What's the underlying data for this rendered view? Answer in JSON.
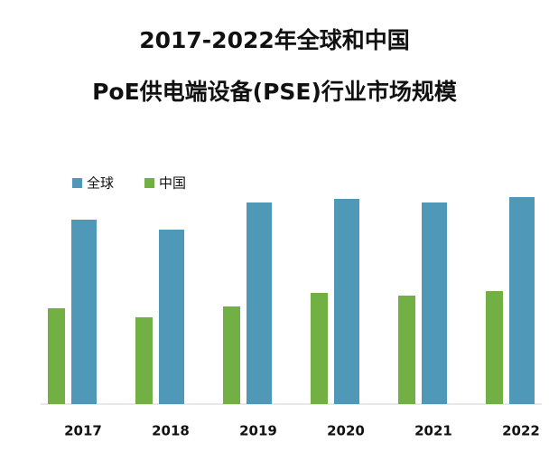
{
  "chart_data": {
    "type": "bar",
    "title": [
      "2017-2022年全球和中国",
      "PoE供电端设备(PSE)行业市场规模"
    ],
    "categories": [
      "2017",
      "2018",
      "2019",
      "2020",
      "2021",
      "2022"
    ],
    "series": [
      {
        "name": "中国",
        "color": "#72b043",
        "values": [
          106,
          96,
          108,
          123,
          120,
          125
        ]
      },
      {
        "name": "全球",
        "color": "#4f98b8",
        "values": [
          204,
          193,
          223,
          227,
          223,
          229
        ]
      }
    ],
    "ylim": [
      0,
      260
    ]
  }
}
